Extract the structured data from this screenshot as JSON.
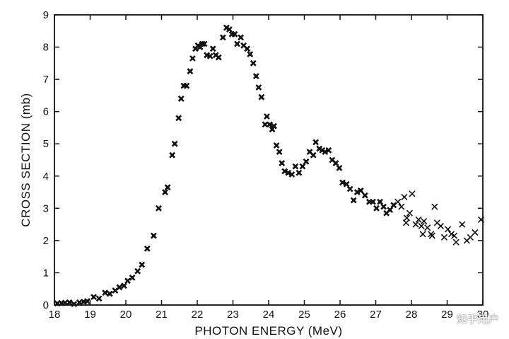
{
  "chart_data": {
    "type": "scatter",
    "title": "",
    "xlabel": "PHOTON ENERGY (MeV)",
    "ylabel": "CROSS SECTION (mb)",
    "xlim": [
      18,
      30
    ],
    "ylim": [
      0,
      9
    ],
    "xticks": [
      18,
      19,
      20,
      21,
      22,
      23,
      24,
      25,
      26,
      27,
      28,
      29,
      30
    ],
    "yticks": [
      0,
      1,
      2,
      3,
      4,
      5,
      6,
      7,
      8,
      9
    ],
    "grid": false,
    "series": [
      {
        "marker": "filled-x",
        "points": [
          [
            18.08,
            0.05
          ],
          [
            18.2,
            0.06
          ],
          [
            18.3,
            0.07
          ],
          [
            18.42,
            0.08
          ],
          [
            18.55,
            0.03
          ],
          [
            18.7,
            0.08
          ],
          [
            18.82,
            0.1
          ],
          [
            18.92,
            0.12
          ],
          [
            19.1,
            0.25
          ],
          [
            19.25,
            0.2
          ],
          [
            19.42,
            0.38
          ],
          [
            19.55,
            0.35
          ],
          [
            19.7,
            0.45
          ],
          [
            19.82,
            0.55
          ],
          [
            19.95,
            0.6
          ],
          [
            20.05,
            0.75
          ],
          [
            20.18,
            0.85
          ],
          [
            20.33,
            1.05
          ],
          [
            20.45,
            1.25
          ],
          [
            20.6,
            1.75
          ],
          [
            20.78,
            2.15
          ],
          [
            20.92,
            3.0
          ],
          [
            21.1,
            3.5
          ],
          [
            21.17,
            3.65
          ],
          [
            21.3,
            4.65
          ],
          [
            21.37,
            5.0
          ],
          [
            21.48,
            5.8
          ],
          [
            21.55,
            6.4
          ],
          [
            21.62,
            6.8
          ],
          [
            21.7,
            6.8
          ],
          [
            21.8,
            7.25
          ],
          [
            21.87,
            7.65
          ],
          [
            21.95,
            7.95
          ],
          [
            22.02,
            8.05
          ],
          [
            22.08,
            8.0
          ],
          [
            22.14,
            8.1
          ],
          [
            22.2,
            8.1
          ],
          [
            22.27,
            7.75
          ],
          [
            22.36,
            7.72
          ],
          [
            22.44,
            7.95
          ],
          [
            22.52,
            7.75
          ],
          [
            22.6,
            7.68
          ],
          [
            22.72,
            8.3
          ],
          [
            22.82,
            8.6
          ],
          [
            22.9,
            8.55
          ],
          [
            22.97,
            8.4
          ],
          [
            23.05,
            8.4
          ],
          [
            23.12,
            8.1
          ],
          [
            23.22,
            8.3
          ],
          [
            23.3,
            8.05
          ],
          [
            23.4,
            7.95
          ],
          [
            23.48,
            7.78
          ],
          [
            23.57,
            7.5
          ],
          [
            23.65,
            7.1
          ],
          [
            23.72,
            6.75
          ],
          [
            23.8,
            6.45
          ],
          [
            23.9,
            5.6
          ],
          [
            23.95,
            5.85
          ],
          [
            24.03,
            5.6
          ],
          [
            24.1,
            5.45
          ],
          [
            24.15,
            5.55
          ],
          [
            24.22,
            4.95
          ],
          [
            24.3,
            4.75
          ],
          [
            24.37,
            4.4
          ],
          [
            24.45,
            4.15
          ],
          [
            24.55,
            4.1
          ],
          [
            24.65,
            4.05
          ],
          [
            24.75,
            4.3
          ],
          [
            24.85,
            4.1
          ],
          [
            24.95,
            4.3
          ],
          [
            25.05,
            4.45
          ],
          [
            25.15,
            4.75
          ],
          [
            25.25,
            4.65
          ],
          [
            25.32,
            5.05
          ],
          [
            25.42,
            4.85
          ],
          [
            25.5,
            4.8
          ],
          [
            25.58,
            4.75
          ],
          [
            25.68,
            4.8
          ],
          [
            25.78,
            4.5
          ],
          [
            25.88,
            4.4
          ],
          [
            25.98,
            4.25
          ],
          [
            26.07,
            3.8
          ],
          [
            26.18,
            3.75
          ],
          [
            26.28,
            3.6
          ],
          [
            26.38,
            3.25
          ],
          [
            26.48,
            3.5
          ],
          [
            26.58,
            3.55
          ],
          [
            26.7,
            3.4
          ],
          [
            26.82,
            3.2
          ],
          [
            26.92,
            3.2
          ],
          [
            27.02,
            3.0
          ],
          [
            27.12,
            3.2
          ],
          [
            27.22,
            3.05
          ],
          [
            27.3,
            2.85
          ],
          [
            27.4,
            2.95
          ],
          [
            27.5,
            3.1
          ]
        ]
      },
      {
        "marker": "x",
        "points": [
          [
            27.62,
            3.2
          ],
          [
            27.72,
            3.05
          ],
          [
            27.8,
            3.35
          ],
          [
            27.87,
            2.7
          ],
          [
            27.95,
            2.85
          ],
          [
            28.02,
            3.45
          ],
          [
            28.12,
            2.5
          ],
          [
            28.2,
            2.65
          ],
          [
            28.28,
            2.45
          ],
          [
            28.35,
            2.6
          ],
          [
            28.45,
            2.4
          ],
          [
            28.55,
            2.2
          ],
          [
            28.65,
            3.05
          ],
          [
            28.72,
            2.55
          ],
          [
            28.82,
            2.45
          ],
          [
            28.92,
            2.1
          ],
          [
            29.02,
            2.35
          ],
          [
            29.12,
            2.2
          ],
          [
            29.25,
            1.95
          ],
          [
            29.42,
            2.5
          ],
          [
            29.55,
            2.0
          ],
          [
            29.65,
            2.1
          ],
          [
            29.78,
            2.25
          ],
          [
            29.95,
            2.65
          ],
          [
            27.85,
            2.55
          ],
          [
            28.32,
            2.2
          ],
          [
            28.58,
            2.15
          ],
          [
            29.2,
            2.15
          ]
        ]
      }
    ]
  },
  "watermark": "知乎用户"
}
